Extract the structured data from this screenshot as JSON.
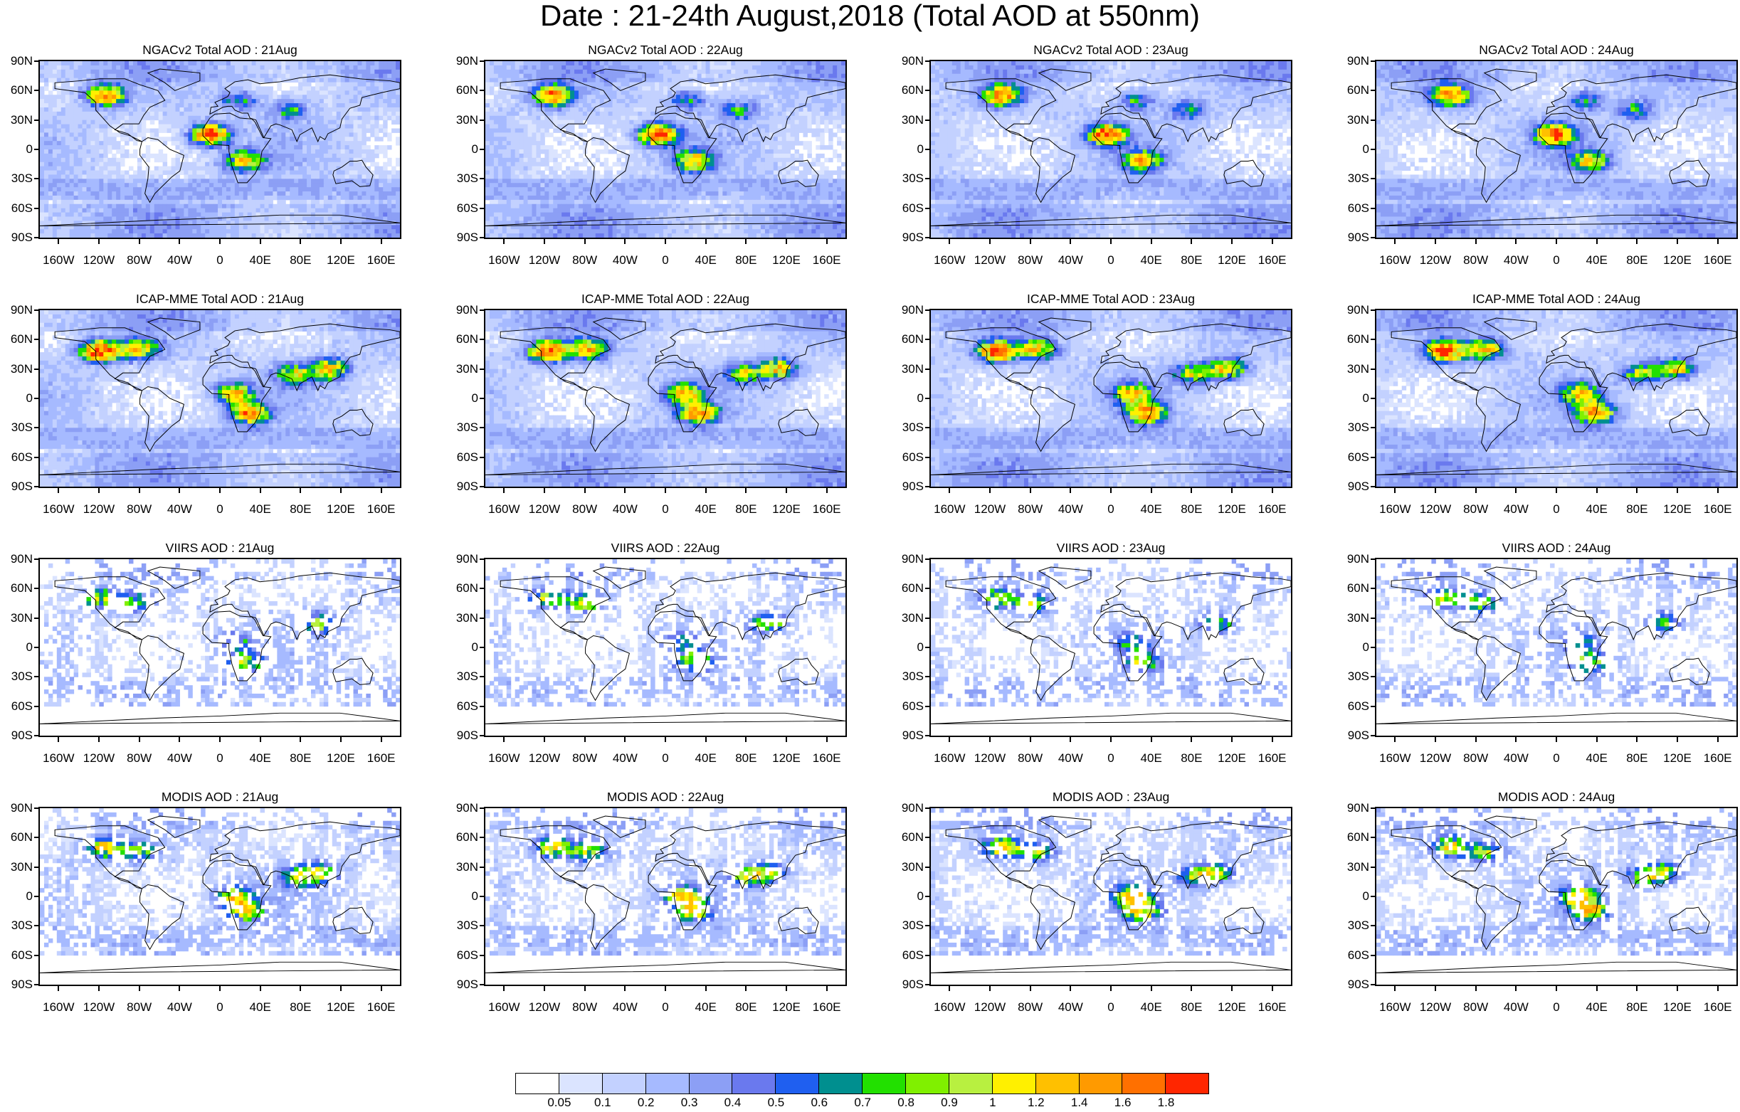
{
  "title": "Date : 21-24th August,2018 (Total AOD at 550nm)",
  "panels": [
    {
      "title": "NGACv2 Total AOD : 21Aug",
      "model": "ngac",
      "day": 0
    },
    {
      "title": "NGACv2 Total AOD : 22Aug",
      "model": "ngac",
      "day": 1
    },
    {
      "title": "NGACv2 Total AOD : 23Aug",
      "model": "ngac",
      "day": 2
    },
    {
      "title": "NGACv2 Total AOD : 24Aug",
      "model": "ngac",
      "day": 3
    },
    {
      "title": "ICAP-MME Total AOD : 21Aug",
      "model": "icap",
      "day": 0
    },
    {
      "title": "ICAP-MME Total AOD : 22Aug",
      "model": "icap",
      "day": 1
    },
    {
      "title": "ICAP-MME Total AOD : 23Aug",
      "model": "icap",
      "day": 2
    },
    {
      "title": "ICAP-MME Total AOD : 24Aug",
      "model": "icap",
      "day": 3
    },
    {
      "title": "VIIRS AOD : 21Aug",
      "model": "viirs",
      "day": 0
    },
    {
      "title": "VIIRS AOD : 22Aug",
      "model": "viirs",
      "day": 1
    },
    {
      "title": "VIIRS AOD : 23Aug",
      "model": "viirs",
      "day": 2
    },
    {
      "title": "VIIRS AOD : 24Aug",
      "model": "viirs",
      "day": 3
    },
    {
      "title": "MODIS AOD : 21Aug",
      "model": "modis",
      "day": 0
    },
    {
      "title": "MODIS AOD : 22Aug",
      "model": "modis",
      "day": 1
    },
    {
      "title": "MODIS AOD : 23Aug",
      "model": "modis",
      "day": 2
    },
    {
      "title": "MODIS AOD : 24Aug",
      "model": "modis",
      "day": 3
    }
  ],
  "lat_labels": [
    "90N",
    "60N",
    "30N",
    "0",
    "30S",
    "60S",
    "90S"
  ],
  "lon_labels": [
    "160W",
    "120W",
    "80W",
    "40W",
    "0",
    "40E",
    "80E",
    "120E",
    "160E"
  ],
  "lon_values": [
    -160,
    -120,
    -80,
    -40,
    0,
    40,
    80,
    120,
    160
  ],
  "lat_values": [
    90,
    60,
    30,
    0,
    -30,
    -60,
    -90
  ],
  "colorbar": {
    "labels": [
      "0.05",
      "0.1",
      "0.2",
      "0.3",
      "0.4",
      "0.5",
      "0.6",
      "0.7",
      "0.8",
      "0.9",
      "1",
      "1.2",
      "1.4",
      "1.6",
      "1.8"
    ],
    "colors": [
      "#ffffff",
      "#dbe4ff",
      "#c3d1ff",
      "#a6baff",
      "#8c9ff5",
      "#6a79ee",
      "#1f5ff0",
      "#008f8f",
      "#22e000",
      "#80f000",
      "#b8f040",
      "#fff000",
      "#ffc000",
      "#ff9a00",
      "#ff7000",
      "#ff2600"
    ]
  }
}
